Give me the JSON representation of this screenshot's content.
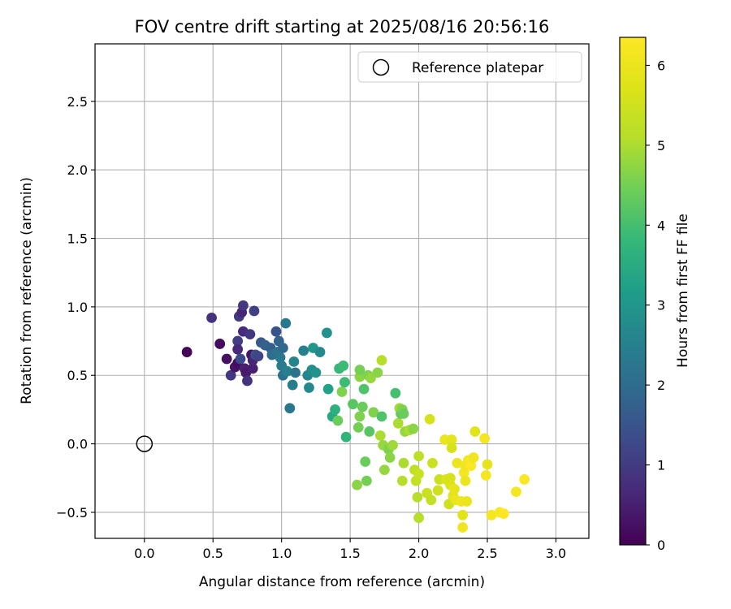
{
  "chart_data": {
    "type": "scatter",
    "title": "FOV centre drift starting at 2025/08/16 20:56:16",
    "xlabel": "Angular distance from reference (arcmin)",
    "ylabel": "Rotation from reference (arcmin)",
    "xlim": [
      -0.36,
      3.24
    ],
    "ylim": [
      -0.69,
      2.92
    ],
    "xticks": [
      0.0,
      0.5,
      1.0,
      1.5,
      2.0,
      2.5,
      3.0
    ],
    "xtick_labels": [
      "0.0",
      "0.5",
      "1.0",
      "1.5",
      "2.0",
      "2.5",
      "3.0"
    ],
    "yticks": [
      -0.5,
      0.0,
      0.5,
      1.0,
      1.5,
      2.0,
      2.5
    ],
    "ytick_labels": [
      "−0.5",
      "0.0",
      "0.5",
      "1.0",
      "1.5",
      "2.0",
      "2.5"
    ],
    "grid": true,
    "legend": {
      "placement": "top-right",
      "label": "Reference platepar"
    },
    "reference": {
      "x": 0.0,
      "y": 0.0
    },
    "colorbar": {
      "label": "Hours from first FF file",
      "range": [
        0,
        6.35
      ],
      "ticks": [
        0,
        1,
        2,
        3,
        4,
        5,
        6
      ],
      "tick_labels": [
        "0",
        "1",
        "2",
        "3",
        "4",
        "5",
        "6"
      ],
      "colormap": "viridis"
    },
    "points": [
      [
        0.31,
        0.67,
        0.05
      ],
      [
        0.49,
        0.92,
        0.8
      ],
      [
        0.55,
        0.73,
        0.15
      ],
      [
        0.6,
        0.62,
        0.25
      ],
      [
        0.63,
        0.5,
        0.9
      ],
      [
        0.66,
        0.56,
        0.3
      ],
      [
        0.68,
        0.59,
        0.2
      ],
      [
        0.68,
        0.75,
        1.05
      ],
      [
        0.68,
        0.69,
        0.7
      ],
      [
        0.69,
        0.93,
        1.0
      ],
      [
        0.7,
        0.62,
        1.3
      ],
      [
        0.71,
        0.96,
        0.6
      ],
      [
        0.72,
        1.01,
        0.9
      ],
      [
        0.72,
        0.82,
        0.7
      ],
      [
        0.73,
        0.55,
        0.5
      ],
      [
        0.74,
        0.52,
        0.4
      ],
      [
        0.75,
        0.46,
        0.8
      ],
      [
        0.77,
        0.8,
        0.9
      ],
      [
        0.78,
        0.65,
        0.3
      ],
      [
        0.79,
        0.55,
        0.5
      ],
      [
        0.79,
        0.61,
        0.6
      ],
      [
        0.8,
        0.97,
        1.1
      ],
      [
        0.81,
        0.65,
        1.4
      ],
      [
        0.83,
        0.64,
        1.2
      ],
      [
        0.85,
        0.74,
        1.6
      ],
      [
        0.88,
        0.72,
        1.8
      ],
      [
        0.92,
        0.7,
        1.7
      ],
      [
        0.93,
        0.65,
        2.0
      ],
      [
        0.96,
        0.82,
        1.5
      ],
      [
        0.97,
        0.67,
        2.2
      ],
      [
        0.98,
        0.75,
        1.8
      ],
      [
        0.99,
        0.63,
        2.3
      ],
      [
        1.0,
        0.57,
        2.4
      ],
      [
        1.01,
        0.7,
        1.9
      ],
      [
        1.01,
        0.5,
        2.1
      ],
      [
        1.03,
        0.88,
        2.3
      ],
      [
        1.04,
        0.53,
        2.5
      ],
      [
        1.06,
        0.26,
        2.3
      ],
      [
        1.08,
        0.43,
        2.4
      ],
      [
        1.09,
        0.6,
        2.6
      ],
      [
        1.1,
        0.52,
        2.2
      ],
      [
        1.16,
        0.68,
        2.5
      ],
      [
        1.19,
        0.5,
        2.6
      ],
      [
        1.2,
        0.41,
        2.7
      ],
      [
        1.22,
        0.54,
        2.8
      ],
      [
        1.23,
        0.7,
        3.0
      ],
      [
        1.25,
        0.52,
        2.9
      ],
      [
        1.28,
        0.67,
        2.7
      ],
      [
        1.33,
        0.81,
        2.9
      ],
      [
        1.34,
        0.4,
        3.3
      ],
      [
        1.37,
        0.2,
        3.4
      ],
      [
        1.39,
        0.25,
        3.6
      ],
      [
        1.41,
        0.17,
        4.4
      ],
      [
        1.42,
        0.55,
        3.8
      ],
      [
        1.44,
        0.38,
        4.6
      ],
      [
        1.45,
        0.57,
        3.9
      ],
      [
        1.46,
        0.45,
        3.9
      ],
      [
        1.47,
        0.05,
        3.7
      ],
      [
        1.52,
        0.29,
        4.2
      ],
      [
        1.55,
        -0.3,
        4.7
      ],
      [
        1.56,
        0.12,
        4.5
      ],
      [
        1.57,
        0.2,
        4.6
      ],
      [
        1.57,
        0.49,
        4.7
      ],
      [
        1.57,
        0.54,
        4.5
      ],
      [
        1.59,
        0.27,
        4.4
      ],
      [
        1.6,
        0.4,
        4.1
      ],
      [
        1.61,
        -0.13,
        4.4
      ],
      [
        1.62,
        -0.27,
        4.5
      ],
      [
        1.63,
        0.5,
        4.6
      ],
      [
        1.64,
        0.09,
        4.2
      ],
      [
        1.65,
        0.48,
        4.8
      ],
      [
        1.67,
        0.23,
        4.6
      ],
      [
        1.7,
        0.52,
        4.7
      ],
      [
        1.72,
        0.06,
        5.0
      ],
      [
        1.73,
        0.61,
        5.1
      ],
      [
        1.73,
        0.2,
        4.1
      ],
      [
        1.74,
        -0.01,
        4.8
      ],
      [
        1.75,
        -0.19,
        4.8
      ],
      [
        1.78,
        -0.04,
        4.6
      ],
      [
        1.79,
        -0.1,
        4.7
      ],
      [
        1.81,
        -0.01,
        4.9
      ],
      [
        1.83,
        0.37,
        4.0
      ],
      [
        1.85,
        0.15,
        5.0
      ],
      [
        1.86,
        0.26,
        4.9
      ],
      [
        1.87,
        0.22,
        4.3
      ],
      [
        1.88,
        -0.27,
        5.1
      ],
      [
        1.88,
        0.25,
        4.6
      ],
      [
        1.89,
        -0.14,
        5.0
      ],
      [
        1.89,
        0.22,
        4.4
      ],
      [
        1.9,
        0.09,
        4.8
      ],
      [
        1.93,
        0.1,
        5.0
      ],
      [
        1.96,
        0.11,
        4.7
      ],
      [
        1.97,
        -0.19,
        5.2
      ],
      [
        1.98,
        -0.27,
        5.3
      ],
      [
        1.99,
        -0.39,
        5.1
      ],
      [
        2.0,
        -0.09,
        5.2
      ],
      [
        2.0,
        -0.54,
        5.1
      ],
      [
        2.0,
        -0.22,
        5.4
      ],
      [
        2.06,
        -0.36,
        5.4
      ],
      [
        2.08,
        0.18,
        5.6
      ],
      [
        2.09,
        -0.41,
        5.3
      ],
      [
        2.1,
        -0.14,
        5.4
      ],
      [
        2.14,
        -0.34,
        5.5
      ],
      [
        2.15,
        -0.26,
        5.4
      ],
      [
        2.19,
        0.03,
        6.0
      ],
      [
        2.2,
        -0.26,
        5.7
      ],
      [
        2.22,
        -0.44,
        5.5
      ],
      [
        2.23,
        -0.25,
        5.6
      ],
      [
        2.23,
        -0.3,
        5.7
      ],
      [
        2.24,
        0.03,
        5.9
      ],
      [
        2.24,
        -0.03,
        5.6
      ],
      [
        2.25,
        -0.38,
        5.8
      ],
      [
        2.26,
        -0.33,
        5.9
      ],
      [
        2.27,
        -0.41,
        6.0
      ],
      [
        2.28,
        -0.14,
        6.0
      ],
      [
        2.31,
        -0.42,
        6.1
      ],
      [
        2.32,
        -0.52,
        5.8
      ],
      [
        2.32,
        -0.61,
        6.1
      ],
      [
        2.33,
        -0.21,
        6.2
      ],
      [
        2.34,
        -0.16,
        6.1
      ],
      [
        2.34,
        -0.27,
        6.0
      ],
      [
        2.35,
        -0.42,
        6.0
      ],
      [
        2.36,
        -0.12,
        6.2
      ],
      [
        2.38,
        -0.16,
        6.3
      ],
      [
        2.4,
        -0.1,
        6.1
      ],
      [
        2.41,
        0.09,
        5.8
      ],
      [
        2.48,
        0.04,
        6.2
      ],
      [
        2.49,
        -0.23,
        6.2
      ],
      [
        2.5,
        -0.15,
        5.9
      ],
      [
        2.53,
        -0.52,
        6.2
      ],
      [
        2.59,
        -0.5,
        6.3
      ],
      [
        2.62,
        -0.51,
        6.35
      ],
      [
        2.71,
        -0.35,
        6.2
      ],
      [
        2.77,
        -0.26,
        6.3
      ]
    ]
  }
}
